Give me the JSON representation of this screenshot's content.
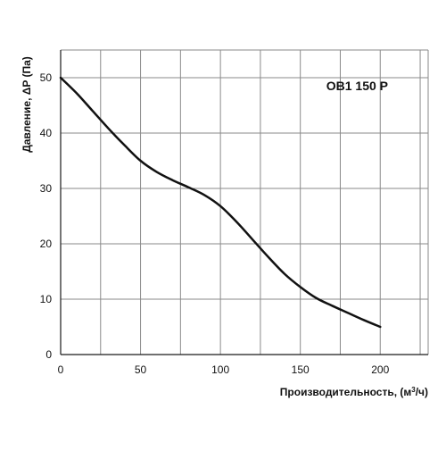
{
  "chart_data": {
    "type": "line",
    "title": "OB1 150 P",
    "xlabel": "Производительность, (м",
    "xlabel_sup": "3",
    "xlabel_tail": "/ч)",
    "ylabel": "Давление, ΔP (Па)",
    "xlim": [
      0,
      230
    ],
    "ylim": [
      0,
      55
    ],
    "xticks": [
      0,
      50,
      100,
      150,
      200
    ],
    "yticks": [
      0,
      10,
      20,
      30,
      40,
      50
    ],
    "grid": true,
    "series": [
      {
        "name": "OB1 150 P",
        "color": "#111111",
        "x": [
          0,
          10,
          20,
          30,
          40,
          50,
          60,
          70,
          80,
          90,
          100,
          110,
          120,
          130,
          140,
          150,
          160,
          170,
          180,
          190,
          200
        ],
        "y": [
          50,
          47.2,
          44,
          40.8,
          37.8,
          35,
          33,
          31.5,
          30.2,
          28.8,
          26.8,
          24,
          20.8,
          17.6,
          14.6,
          12.2,
          10.2,
          8.8,
          7.5,
          6.2,
          5
        ]
      }
    ]
  }
}
